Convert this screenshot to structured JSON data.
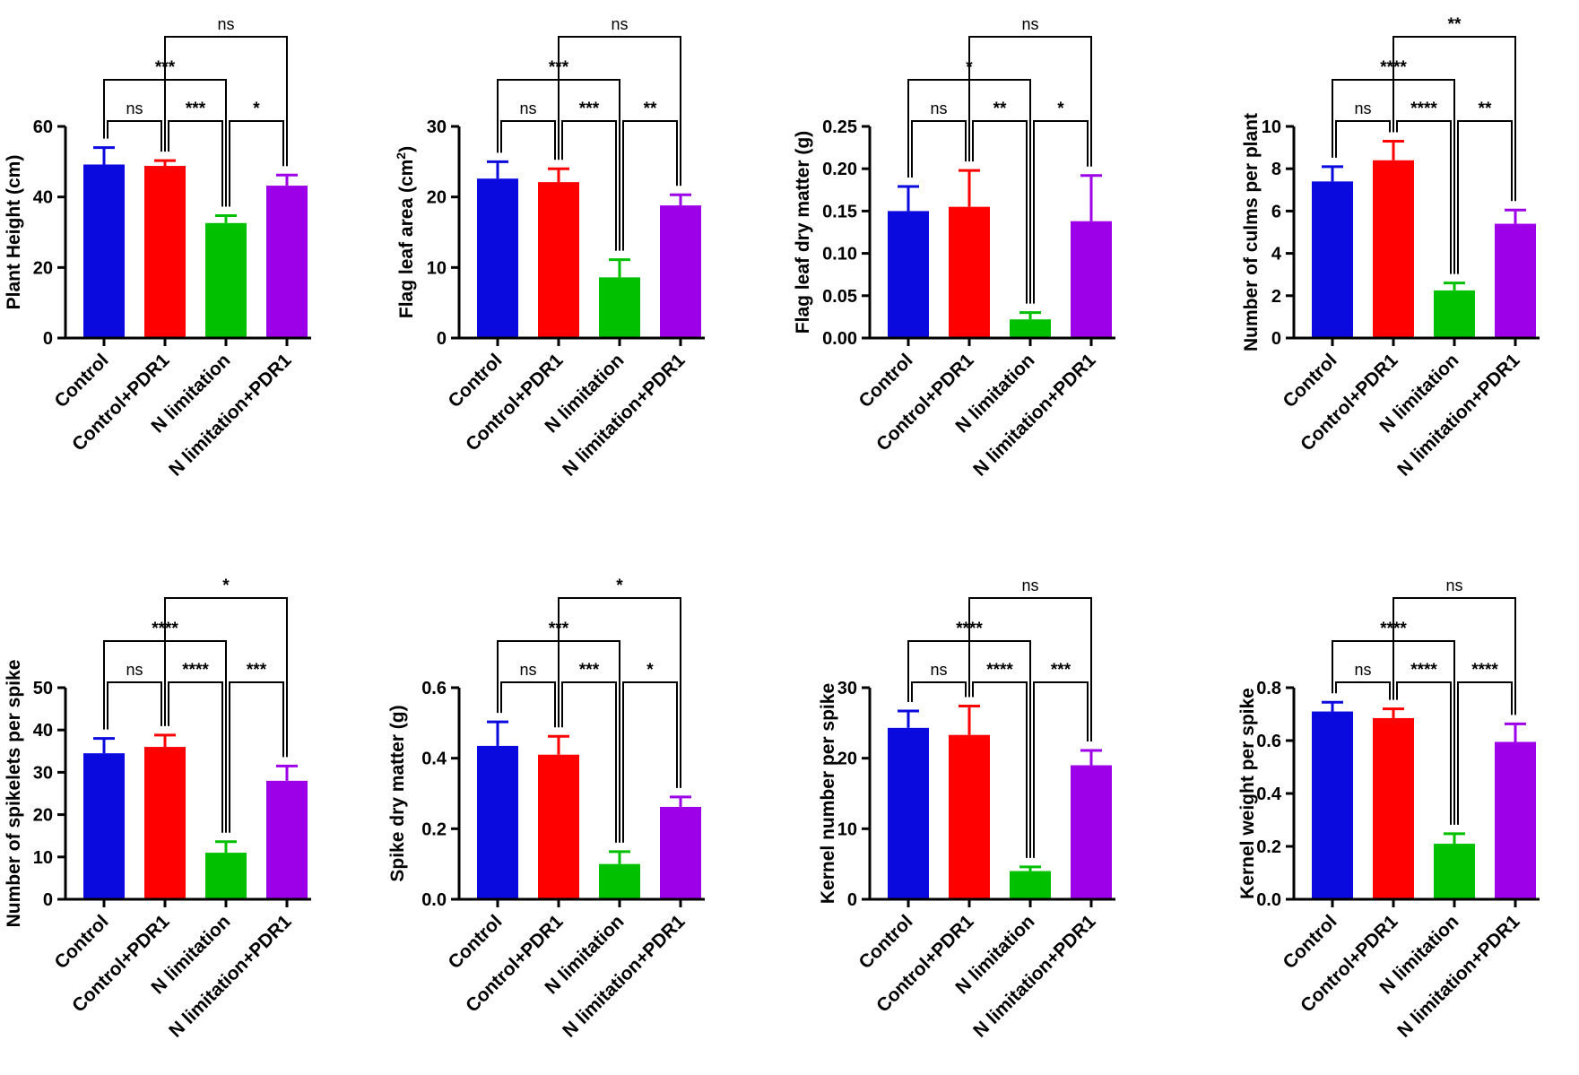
{
  "chart_data": [
    {
      "type": "bar",
      "id": "plant-height",
      "ylabel": "Plant Height (cm)",
      "categories": [
        "Control",
        "Control+PDR1",
        "N limitation",
        "N limitation+PDR1"
      ],
      "values": [
        49.2,
        48.8,
        32.6,
        43.2
      ],
      "errors": [
        4.8,
        1.5,
        2.1,
        3.0
      ],
      "ylim": [
        0,
        60
      ],
      "yticks": [
        {
          "v": 0,
          "t": "0"
        },
        {
          "v": 20,
          "t": "20"
        },
        {
          "v": 40,
          "t": "40"
        },
        {
          "v": 60,
          "t": "60"
        }
      ],
      "comparisons": [
        {
          "a": 0,
          "b": 1,
          "label": "ns"
        },
        {
          "a": 1,
          "b": 2,
          "label": "***"
        },
        {
          "a": 2,
          "b": 3,
          "label": "*"
        },
        {
          "a": 0,
          "b": 2,
          "label": "***"
        },
        {
          "a": 1,
          "b": 3,
          "label": "ns"
        }
      ]
    },
    {
      "type": "bar",
      "id": "flag-leaf-area",
      "ylabel": "Flag leaf area (cm",
      "ylabel_sup": "2",
      "ylabel_end": ")",
      "categories": [
        "Control",
        "Control+PDR1",
        "N limitation",
        "N limitation+PDR1"
      ],
      "values": [
        22.6,
        22.1,
        8.6,
        18.8
      ],
      "errors": [
        2.4,
        1.9,
        2.5,
        1.5
      ],
      "ylim": [
        0,
        30
      ],
      "yticks": [
        {
          "v": 0,
          "t": "0"
        },
        {
          "v": 10,
          "t": "10"
        },
        {
          "v": 20,
          "t": "20"
        },
        {
          "v": 30,
          "t": "30"
        }
      ],
      "comparisons": [
        {
          "a": 0,
          "b": 1,
          "label": "ns"
        },
        {
          "a": 1,
          "b": 2,
          "label": "***"
        },
        {
          "a": 2,
          "b": 3,
          "label": "**"
        },
        {
          "a": 0,
          "b": 2,
          "label": "***"
        },
        {
          "a": 1,
          "b": 3,
          "label": "ns"
        }
      ]
    },
    {
      "type": "bar",
      "id": "flag-leaf-dry-matter",
      "ylabel": "Flag leaf dry matter (g)",
      "categories": [
        "Control",
        "Control+PDR1",
        "N limitation",
        "N limitation+PDR1"
      ],
      "values": [
        0.15,
        0.155,
        0.022,
        0.138
      ],
      "errors": [
        0.029,
        0.043,
        0.008,
        0.054
      ],
      "ylim": [
        0,
        0.25
      ],
      "yticks": [
        {
          "v": 0,
          "t": "0.00"
        },
        {
          "v": 0.05,
          "t": "0.05"
        },
        {
          "v": 0.1,
          "t": "0.10"
        },
        {
          "v": 0.15,
          "t": "0.15"
        },
        {
          "v": 0.2,
          "t": "0.20"
        },
        {
          "v": 0.25,
          "t": "0.25"
        }
      ],
      "comparisons": [
        {
          "a": 0,
          "b": 1,
          "label": "ns"
        },
        {
          "a": 1,
          "b": 2,
          "label": "**"
        },
        {
          "a": 2,
          "b": 3,
          "label": "*"
        },
        {
          "a": 0,
          "b": 2,
          "label": "*"
        },
        {
          "a": 1,
          "b": 3,
          "label": "ns"
        }
      ]
    },
    {
      "type": "bar",
      "id": "culms-per-plant",
      "ylabel": "Number of culms per plant",
      "categories": [
        "Control",
        "Control+PDR1",
        "N limitation",
        "N limitation+PDR1"
      ],
      "values": [
        7.4,
        8.4,
        2.25,
        5.4
      ],
      "errors": [
        0.7,
        0.9,
        0.35,
        0.65
      ],
      "ylim": [
        0,
        10
      ],
      "yticks": [
        {
          "v": 0,
          "t": "0"
        },
        {
          "v": 2,
          "t": "2"
        },
        {
          "v": 4,
          "t": "4"
        },
        {
          "v": 6,
          "t": "6"
        },
        {
          "v": 8,
          "t": "8"
        },
        {
          "v": 10,
          "t": "10"
        }
      ],
      "comparisons": [
        {
          "a": 0,
          "b": 1,
          "label": "ns"
        },
        {
          "a": 1,
          "b": 2,
          "label": "****"
        },
        {
          "a": 2,
          "b": 3,
          "label": "**"
        },
        {
          "a": 0,
          "b": 2,
          "label": "****"
        },
        {
          "a": 1,
          "b": 3,
          "label": "**"
        }
      ]
    },
    {
      "type": "bar",
      "id": "spikelets-per-spike",
      "ylabel": "Number of spikelets per spike",
      "categories": [
        "Control",
        "Control+PDR1",
        "N limitation",
        "N limitation+PDR1"
      ],
      "values": [
        34.5,
        36,
        11,
        28
      ],
      "errors": [
        3.5,
        2.8,
        2.6,
        3.5
      ],
      "ylim": [
        0,
        50
      ],
      "yticks": [
        {
          "v": 0,
          "t": "0"
        },
        {
          "v": 10,
          "t": "10"
        },
        {
          "v": 20,
          "t": "20"
        },
        {
          "v": 30,
          "t": "30"
        },
        {
          "v": 40,
          "t": "40"
        },
        {
          "v": 50,
          "t": "50"
        }
      ],
      "comparisons": [
        {
          "a": 0,
          "b": 1,
          "label": "ns"
        },
        {
          "a": 1,
          "b": 2,
          "label": "****"
        },
        {
          "a": 2,
          "b": 3,
          "label": "***"
        },
        {
          "a": 0,
          "b": 2,
          "label": "****"
        },
        {
          "a": 1,
          "b": 3,
          "label": "*"
        }
      ]
    },
    {
      "type": "bar",
      "id": "spike-dry-matter",
      "ylabel": "Spike dry matter (g)",
      "categories": [
        "Control",
        "Control+PDR1",
        "N limitation",
        "N limitation+PDR1"
      ],
      "values": [
        0.435,
        0.41,
        0.1,
        0.262
      ],
      "errors": [
        0.068,
        0.052,
        0.035,
        0.028
      ],
      "ylim": [
        0,
        0.6
      ],
      "yticks": [
        {
          "v": 0,
          "t": "0.0"
        },
        {
          "v": 0.2,
          "t": "0.2"
        },
        {
          "v": 0.4,
          "t": "0.4"
        },
        {
          "v": 0.6,
          "t": "0.6"
        }
      ],
      "comparisons": [
        {
          "a": 0,
          "b": 1,
          "label": "ns"
        },
        {
          "a": 1,
          "b": 2,
          "label": "***"
        },
        {
          "a": 2,
          "b": 3,
          "label": "*"
        },
        {
          "a": 0,
          "b": 2,
          "label": "***"
        },
        {
          "a": 1,
          "b": 3,
          "label": "*"
        }
      ]
    },
    {
      "type": "bar",
      "id": "kernel-number-per-spike",
      "ylabel": "Kernel number per spike",
      "categories": [
        "Control",
        "Control+PDR1",
        "N limitation",
        "N limitation+PDR1"
      ],
      "values": [
        24.3,
        23.3,
        4,
        19
      ],
      "errors": [
        2.4,
        4.1,
        0.6,
        2.1
      ],
      "ylim": [
        0,
        30
      ],
      "yticks": [
        {
          "v": 0,
          "t": "0"
        },
        {
          "v": 10,
          "t": "10"
        },
        {
          "v": 20,
          "t": "20"
        },
        {
          "v": 30,
          "t": "30"
        }
      ],
      "comparisons": [
        {
          "a": 0,
          "b": 1,
          "label": "ns"
        },
        {
          "a": 1,
          "b": 2,
          "label": "****"
        },
        {
          "a": 2,
          "b": 3,
          "label": "***"
        },
        {
          "a": 0,
          "b": 2,
          "label": "****"
        },
        {
          "a": 1,
          "b": 3,
          "label": "ns"
        }
      ]
    },
    {
      "type": "bar",
      "id": "kernel-weight-per-spike",
      "ylabel": "Kernel weight per spike",
      "categories": [
        "Control",
        "Control+PDR1",
        "N limitation",
        "N limitation+PDR1"
      ],
      "values": [
        0.71,
        0.685,
        0.21,
        0.595
      ],
      "errors": [
        0.035,
        0.035,
        0.038,
        0.068
      ],
      "ylim": [
        0,
        0.8
      ],
      "yticks": [
        {
          "v": 0,
          "t": "0.0"
        },
        {
          "v": 0.2,
          "t": "0.2"
        },
        {
          "v": 0.4,
          "t": "0.4"
        },
        {
          "v": 0.6,
          "t": "0.6"
        },
        {
          "v": 0.8,
          "t": "0.8"
        }
      ],
      "comparisons": [
        {
          "a": 0,
          "b": 1,
          "label": "ns"
        },
        {
          "a": 1,
          "b": 2,
          "label": "****"
        },
        {
          "a": 2,
          "b": 3,
          "label": "****"
        },
        {
          "a": 0,
          "b": 2,
          "label": "****"
        },
        {
          "a": 1,
          "b": 3,
          "label": "ns"
        }
      ]
    }
  ],
  "colors": {
    "Control": "#0a0adf",
    "Control+PDR1": "#ff0000",
    "N limitation": "#00c000",
    "N limitation+PDR1": "#9d00e8",
    "axis": "#000000"
  }
}
